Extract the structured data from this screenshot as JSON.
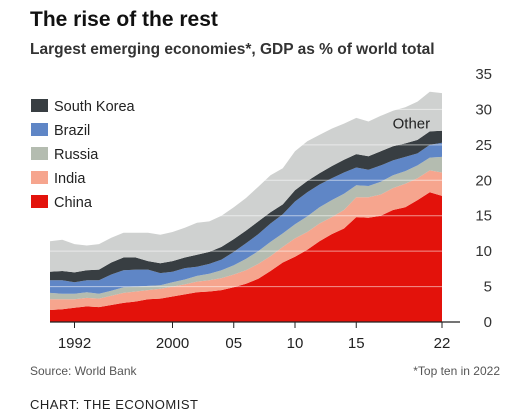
{
  "title": "The rise of the rest",
  "subtitle": "Largest emerging economies*, GDP as % of world total",
  "source": "Source: World Bank",
  "footnote": "*Top ten in 2022",
  "credit": "CHART: THE ECONOMIST",
  "chart_data": {
    "type": "area",
    "stacked": true,
    "x": [
      1990,
      1991,
      1992,
      1993,
      1994,
      1995,
      1996,
      1997,
      1998,
      1999,
      2000,
      2001,
      2002,
      2003,
      2004,
      2005,
      2006,
      2007,
      2008,
      2009,
      2010,
      2011,
      2012,
      2013,
      2014,
      2015,
      2016,
      2017,
      2018,
      2019,
      2020,
      2021,
      2022
    ],
    "xticks": [
      {
        "value": 1992,
        "label": "1992"
      },
      {
        "value": 2000,
        "label": "2000"
      },
      {
        "value": 2005,
        "label": "05"
      },
      {
        "value": 2010,
        "label": "10"
      },
      {
        "value": 2015,
        "label": "15"
      },
      {
        "value": 2022,
        "label": "22"
      }
    ],
    "yticks": [
      0,
      5,
      10,
      15,
      20,
      25,
      30,
      35
    ],
    "ylim": [
      0,
      35
    ],
    "xlim": [
      1990,
      2022
    ],
    "yaxis_side": "right",
    "grid": true,
    "legend_position": "left",
    "series": [
      {
        "name": "China",
        "color": "#e3120b",
        "values": [
          1.7,
          1.8,
          2.0,
          2.2,
          2.1,
          2.4,
          2.7,
          2.9,
          3.2,
          3.3,
          3.6,
          3.9,
          4.2,
          4.3,
          4.5,
          4.9,
          5.4,
          6.1,
          7.2,
          8.4,
          9.2,
          10.2,
          11.4,
          12.4,
          13.2,
          14.8,
          14.7,
          15.0,
          15.8,
          16.2,
          17.2,
          18.3,
          17.8
        ]
      },
      {
        "name": "India",
        "color": "#f6a58e",
        "values": [
          1.5,
          1.4,
          1.2,
          1.2,
          1.2,
          1.3,
          1.4,
          1.4,
          1.3,
          1.4,
          1.4,
          1.4,
          1.5,
          1.6,
          1.7,
          1.8,
          1.9,
          2.1,
          2.1,
          2.2,
          2.6,
          2.5,
          2.5,
          2.4,
          2.6,
          2.8,
          2.9,
          3.0,
          3.1,
          3.3,
          3.1,
          3.1,
          3.3
        ]
      },
      {
        "name": "Russia",
        "color": "#b4bcb0",
        "values": [
          0.9,
          0.8,
          0.8,
          0.8,
          0.7,
          0.7,
          0.8,
          0.7,
          0.6,
          0.5,
          0.6,
          0.7,
          0.8,
          0.9,
          1.1,
          1.3,
          1.6,
          1.8,
          2.0,
          1.9,
          2.0,
          2.2,
          2.3,
          2.4,
          2.3,
          1.7,
          1.6,
          1.8,
          1.8,
          1.8,
          1.8,
          1.8,
          2.2
        ]
      },
      {
        "name": "Brazil",
        "color": "#5f86c6",
        "values": [
          1.8,
          1.9,
          1.6,
          1.7,
          1.9,
          2.3,
          2.4,
          2.4,
          2.3,
          1.7,
          1.5,
          1.6,
          1.3,
          1.4,
          1.5,
          1.9,
          2.2,
          2.4,
          2.6,
          2.7,
          3.2,
          3.4,
          3.2,
          3.1,
          3.0,
          2.5,
          2.3,
          2.3,
          2.1,
          2.0,
          1.7,
          1.8,
          2.0
        ]
      },
      {
        "name": "South Korea",
        "color": "#383e42",
        "values": [
          1.2,
          1.3,
          1.4,
          1.4,
          1.5,
          1.7,
          1.8,
          1.7,
          1.2,
          1.4,
          1.5,
          1.5,
          1.7,
          1.7,
          1.8,
          1.8,
          1.8,
          1.8,
          1.6,
          1.4,
          1.6,
          1.6,
          1.6,
          1.7,
          1.8,
          1.9,
          1.9,
          2.0,
          2.0,
          1.9,
          1.9,
          1.9,
          1.7
        ]
      },
      {
        "name": "Other",
        "color": "#cfd1d0",
        "values": [
          4.3,
          4.4,
          4.0,
          3.5,
          3.6,
          3.5,
          3.5,
          3.5,
          4.0,
          4.0,
          4.1,
          4.2,
          4.5,
          4.3,
          4.4,
          4.5,
          4.6,
          4.9,
          5.2,
          5.1,
          5.5,
          5.6,
          5.4,
          5.3,
          5.1,
          5.1,
          4.9,
          5.0,
          5.0,
          5.1,
          5.4,
          5.6,
          5.3
        ]
      }
    ],
    "legend": [
      "South Korea",
      "Brazil",
      "Russia",
      "India",
      "China"
    ],
    "annotations": [
      {
        "text": "Other",
        "x": 2019.5,
        "y": 27.3
      }
    ]
  }
}
